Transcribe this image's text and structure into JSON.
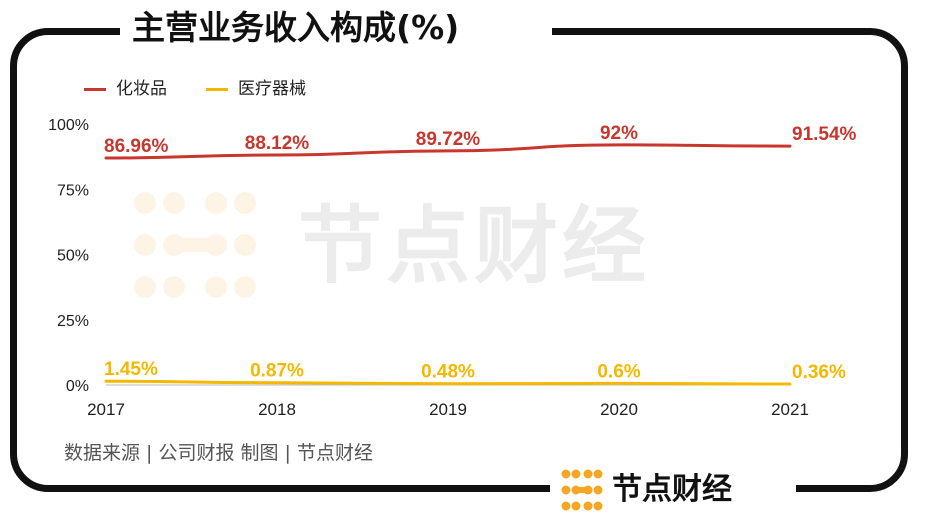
{
  "title": "主营业务收入构成(%)",
  "source": "数据来源 | 公司财报  制图 | 节点财经",
  "brand": "节点财经",
  "watermark": "节点财经",
  "legend": [
    {
      "label": "化妆品",
      "color": "#c8372d"
    },
    {
      "label": "医疗器械",
      "color": "#f5b800"
    }
  ],
  "chart_data": {
    "type": "line",
    "x": [
      "2017",
      "2018",
      "2019",
      "2020",
      "2021"
    ],
    "y_ticks": [
      "0%",
      "25%",
      "50%",
      "75%",
      "100%"
    ],
    "ylim": [
      0,
      100
    ],
    "series": [
      {
        "name": "化妆品",
        "color": "#c8372d",
        "values": [
          86.96,
          88.12,
          89.72,
          92,
          91.54
        ],
        "labels": [
          "86.96%",
          "88.12%",
          "89.72%",
          "92%",
          "91.54%"
        ]
      },
      {
        "name": "医疗器械",
        "color": "#f5b800",
        "values": [
          1.45,
          0.87,
          0.48,
          0.6,
          0.36
        ],
        "labels": [
          "1.45%",
          "0.87%",
          "0.48%",
          "0.6%",
          "0.36%"
        ]
      }
    ]
  }
}
